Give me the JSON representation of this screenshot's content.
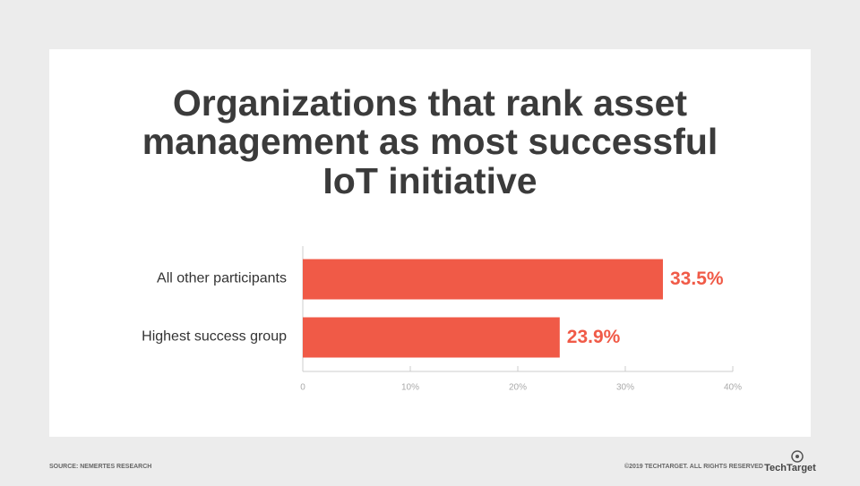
{
  "chart_data": {
    "type": "barh",
    "title": [
      "Organizations that rank asset",
      "management as most successful",
      "IoT initiative"
    ],
    "categories": [
      "All other participants",
      "Highest success group"
    ],
    "values": [
      33.5,
      23.9
    ],
    "value_labels": [
      "33.5%",
      "23.9%"
    ],
    "color": "#f05a47",
    "xlim": [
      0,
      40
    ],
    "xticks": [
      0,
      {
        "value": 10,
        "label": "10%"
      },
      {
        "value": 20,
        "label": "20%"
      },
      {
        "value": 30,
        "label": "30%"
      },
      {
        "value": 40,
        "label": "40%"
      }
    ]
  },
  "footer": {
    "source": "SOURCE: NEMERTES RESEARCH",
    "copyright": "©2019 TECHTARGET. ALL RIGHTS RESERVED",
    "logo": "TechTarget"
  }
}
